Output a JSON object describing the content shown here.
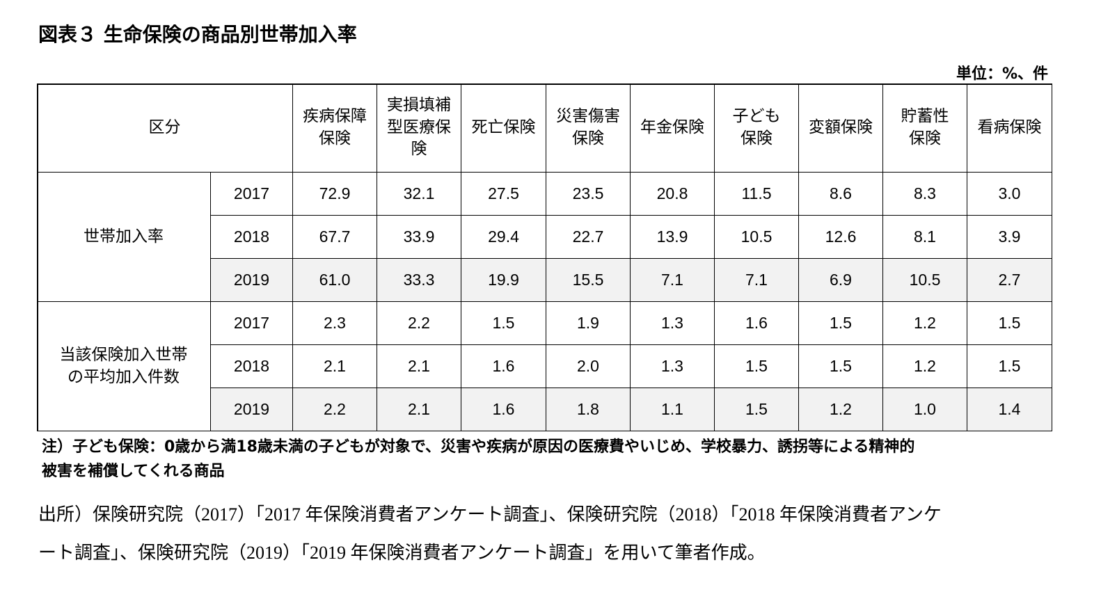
{
  "title": "図表３ 生命保険の商品別世帯加入率",
  "unit": "単位：%、件",
  "table": {
    "corner": "区分",
    "columns": [
      [
        "疾病保障",
        "保険"
      ],
      [
        "実損填補",
        "型医療保",
        "険"
      ],
      [
        "死亡保険"
      ],
      [
        "災害傷害",
        "保険"
      ],
      [
        "年金保険"
      ],
      [
        "子ども",
        "保険"
      ],
      [
        "変額保険"
      ],
      [
        "貯蓄性",
        "保険"
      ],
      [
        "看病保険"
      ]
    ],
    "groups": [
      {
        "label": [
          "世帯加入率"
        ],
        "rows": [
          {
            "year": "2017",
            "values": [
              "72.9",
              "32.1",
              "27.5",
              "23.5",
              "20.8",
              "11.5",
              "8.6",
              "8.3",
              "3.0"
            ]
          },
          {
            "year": "2018",
            "values": [
              "67.7",
              "33.9",
              "29.4",
              "22.7",
              "13.9",
              "10.5",
              "12.6",
              "8.1",
              "3.9"
            ]
          },
          {
            "year": "2019",
            "values": [
              "61.0",
              "33.3",
              "19.9",
              "15.5",
              "7.1",
              "7.1",
              "6.9",
              "10.5",
              "2.7"
            ]
          }
        ]
      },
      {
        "label": [
          "当該保険加入世帯",
          "の平均加入件数"
        ],
        "rows": [
          {
            "year": "2017",
            "values": [
              "2.3",
              "2.2",
              "1.5",
              "1.9",
              "1.3",
              "1.6",
              "1.5",
              "1.2",
              "1.5"
            ]
          },
          {
            "year": "2018",
            "values": [
              "2.1",
              "2.1",
              "1.6",
              "2.0",
              "1.3",
              "1.5",
              "1.5",
              "1.2",
              "1.5"
            ]
          },
          {
            "year": "2019",
            "values": [
              "2.2",
              "2.1",
              "1.6",
              "1.8",
              "1.1",
              "1.5",
              "1.2",
              "1.0",
              "1.4"
            ]
          }
        ]
      }
    ]
  },
  "note": [
    "注）子ども保険：0歳から満18歳未満の子どもが対象で、災害や疾病が原因の医療費やいじめ、学校暴力、誘拐等による精神的",
    "被害を補償してくれる商品"
  ],
  "source": [
    "出所）保険研究院（2017）「2017 年保険消費者アンケート調査」、保険研究院（2018）「2018 年保険消費者アンケ",
    "ート調査」、保険研究院（2019）「2019 年保険消費者アンケート調査」を用いて筆者作成。"
  ]
}
